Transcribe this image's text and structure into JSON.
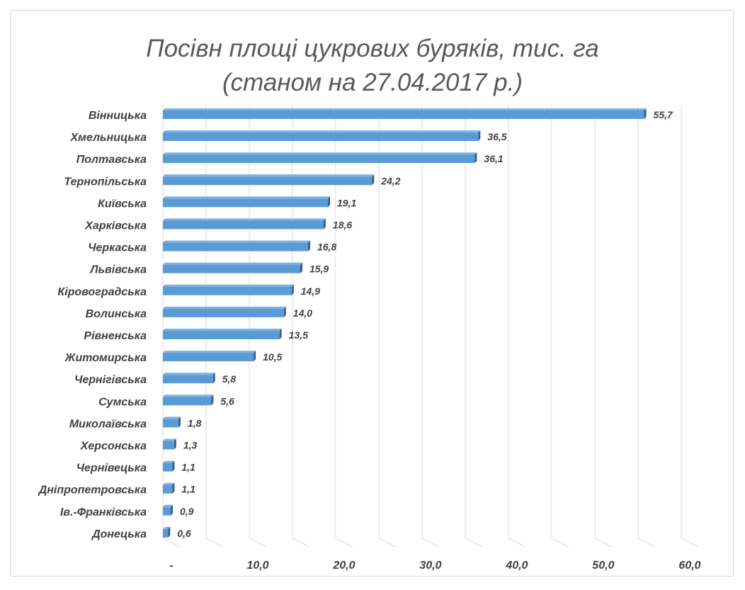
{
  "chart_data": {
    "type": "bar",
    "orientation": "horizontal",
    "title_lines": [
      "Посівн площі цукрових буряків, тис. га",
      "(станом на 27.04.2017 р.)"
    ],
    "categories": [
      "Вінницька",
      "Хмельницька",
      "Полтавська",
      "Тернопільська",
      "Київська",
      "Харківська",
      "Черкаська",
      "Львівська",
      "Кіровоградська",
      "Волинська",
      "Рівненська",
      "Житомирська",
      "Чернігівська",
      "Сумська",
      "Миколаївська",
      "Херсонська",
      "Чернівецька",
      "Дніпропетровська",
      "Ів.-Франківська",
      "Донецька"
    ],
    "values": [
      55.7,
      36.5,
      36.1,
      24.2,
      19.1,
      18.6,
      16.8,
      15.9,
      14.9,
      14.0,
      13.5,
      10.5,
      5.8,
      5.6,
      1.8,
      1.3,
      1.1,
      1.1,
      0.9,
      0.6
    ],
    "value_labels": [
      "55,7",
      "36,5",
      "36,1",
      "24,2",
      "19,1",
      "18,6",
      "16,8",
      "15,9",
      "14,9",
      "14,0",
      "13,5",
      "10,5",
      "5,8",
      "5,6",
      "1,8",
      "1,3",
      "1,1",
      "1,1",
      "0,9",
      "0,6"
    ],
    "xlim": [
      0,
      60
    ],
    "xticks": [
      0,
      10,
      20,
      30,
      40,
      50,
      60
    ],
    "xtick_labels": [
      "-",
      "10,0",
      "20,0",
      "30,0",
      "40,0",
      "50,0",
      "60,0"
    ],
    "grid": true,
    "legend": "none",
    "bar_color": "#5B9BD5",
    "bar_top_color": "#7FB2E0",
    "bar_side_color": "#2E6198",
    "grid_color": "#d9d9d9",
    "text_color": "#404040",
    "title_color": "#595959"
  }
}
